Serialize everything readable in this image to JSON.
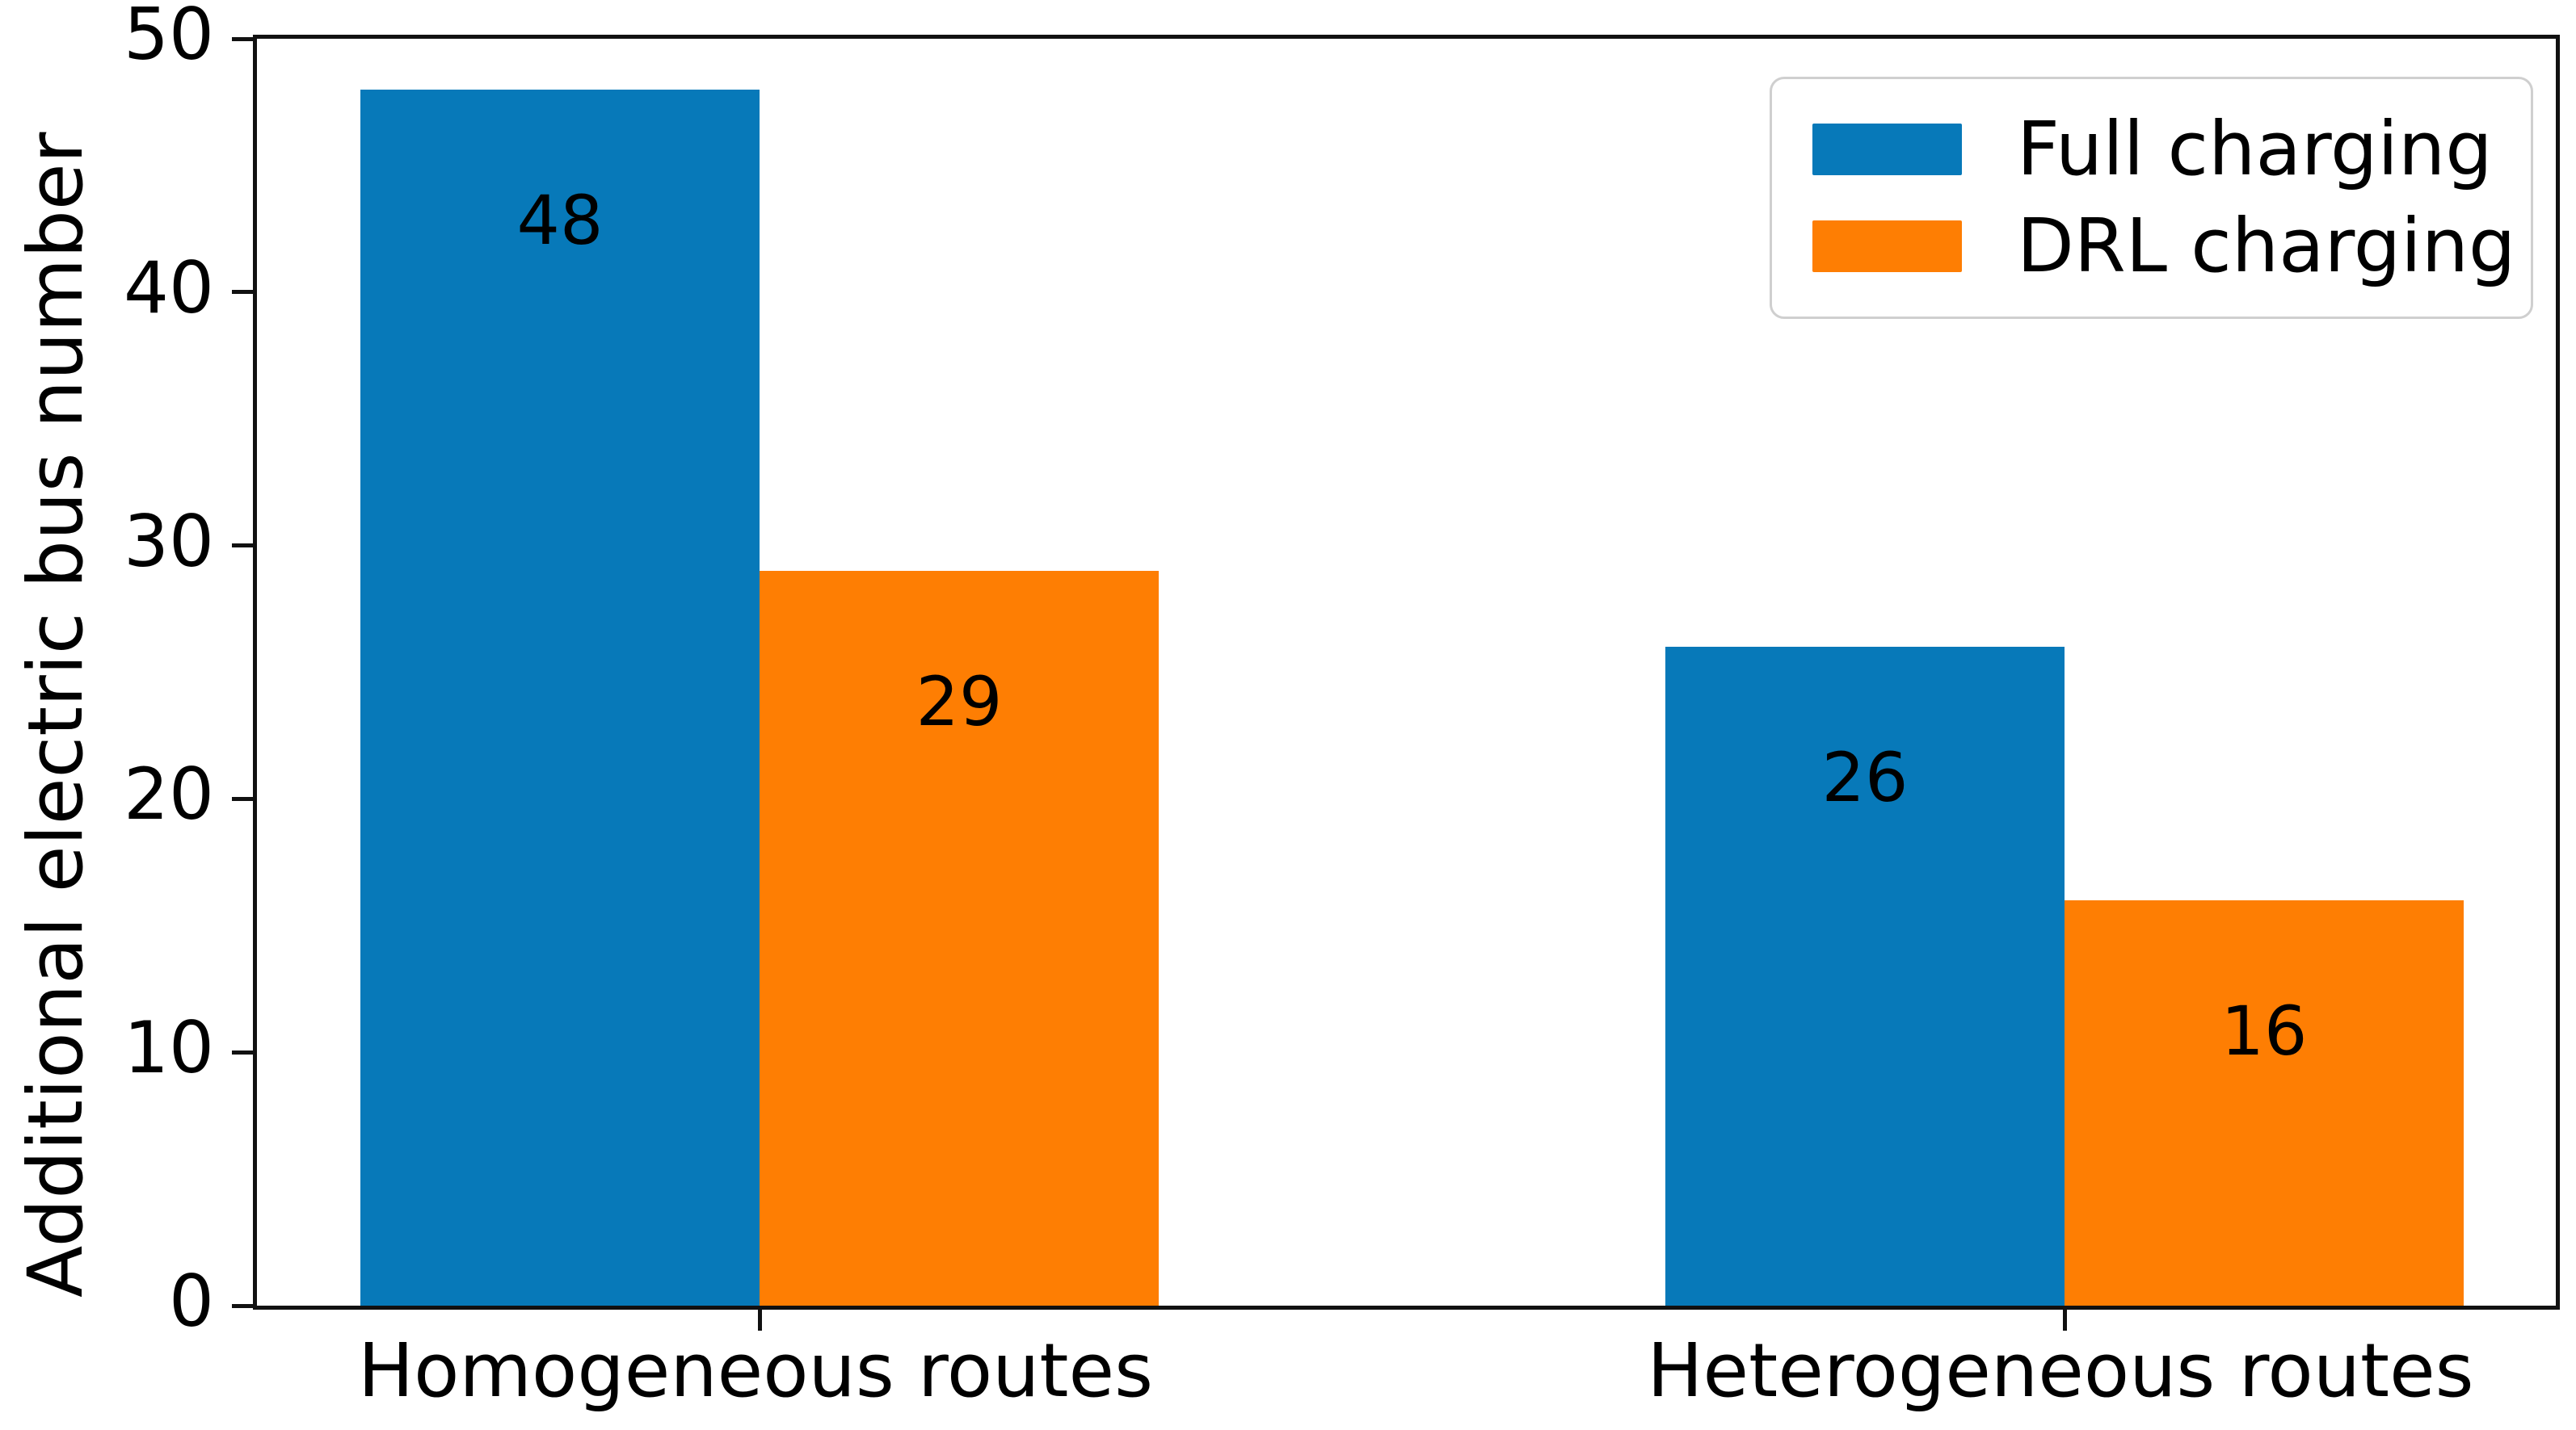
{
  "chart_data": {
    "type": "bar",
    "title": "",
    "xlabel": "",
    "ylabel": "Additional electric bus number",
    "categories": [
      "Homogeneous routes",
      "Heterogeneous routes"
    ],
    "series": [
      {
        "name": "Full charging",
        "color": "#0779b9",
        "values": [
          48,
          26
        ]
      },
      {
        "name": "DRL charging",
        "color": "#fe7e03",
        "values": [
          29,
          16
        ]
      }
    ],
    "bar_value_labels": [
      [
        48,
        26
      ],
      [
        29,
        16
      ]
    ],
    "ylim": [
      0,
      50
    ],
    "yticks": [
      0,
      10,
      20,
      30,
      40,
      50
    ],
    "grid": false,
    "legend_position": "upper right",
    "colors": {
      "spine": "#111111",
      "text": "#000000",
      "legend_border": "#cfcfcf",
      "background": "#ffffff"
    }
  }
}
